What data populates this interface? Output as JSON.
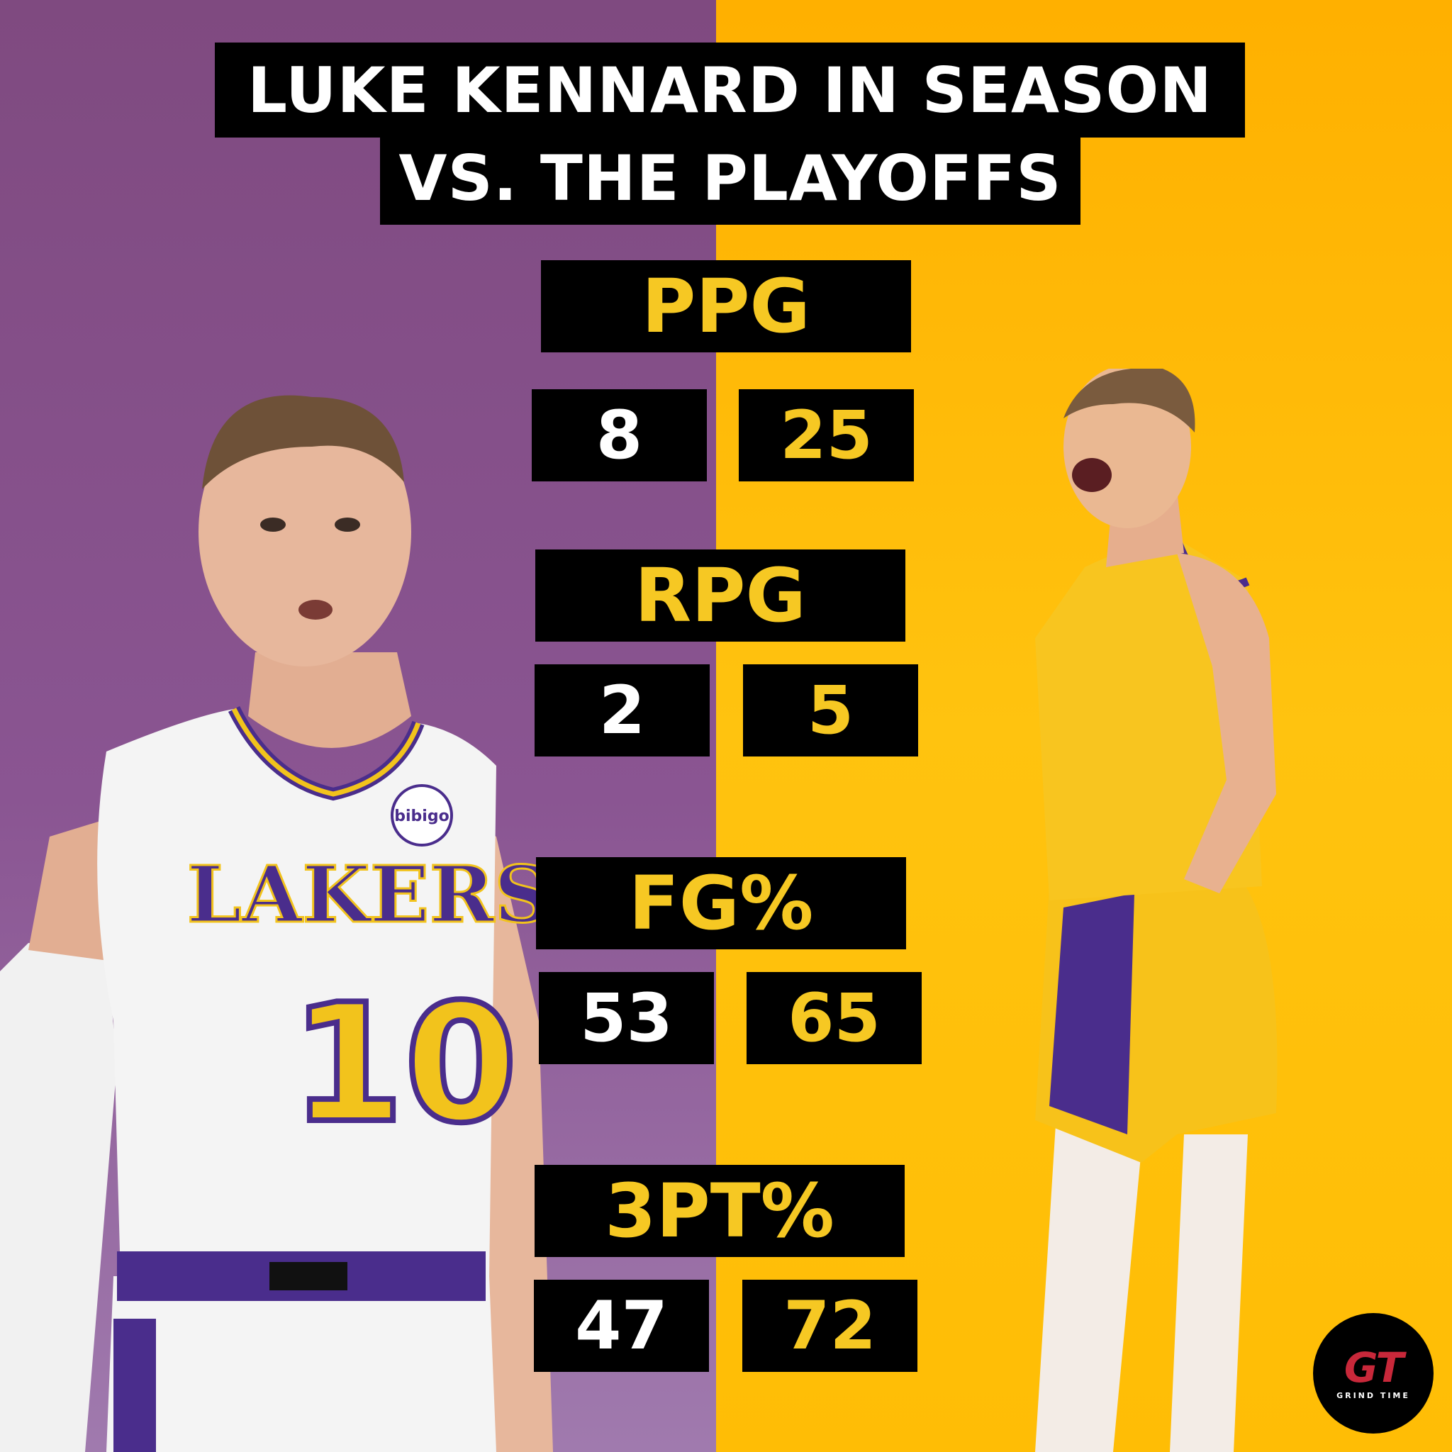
{
  "title": {
    "line1": "LUKE KENNARD IN SEASON",
    "line2": "VS. THE PLAYOFFS"
  },
  "stats": [
    {
      "label": "PPG",
      "season": "8",
      "playoffs": "25"
    },
    {
      "label": "RPG",
      "season": "2",
      "playoffs": "5"
    },
    {
      "label": "FG%",
      "season": "53",
      "playoffs": "65"
    },
    {
      "label": "3PT%",
      "season": "47",
      "playoffs": "72"
    }
  ],
  "left_jersey": {
    "team": "LAKERS",
    "number": "10",
    "sponsor": "bibigo"
  },
  "logo": {
    "mark": "GT",
    "text": "GRIND TIME"
  },
  "colors": {
    "purple": "#8a5592",
    "gold": "#ffc30f",
    "label_gold": "#f6c823",
    "box": "#000000"
  }
}
